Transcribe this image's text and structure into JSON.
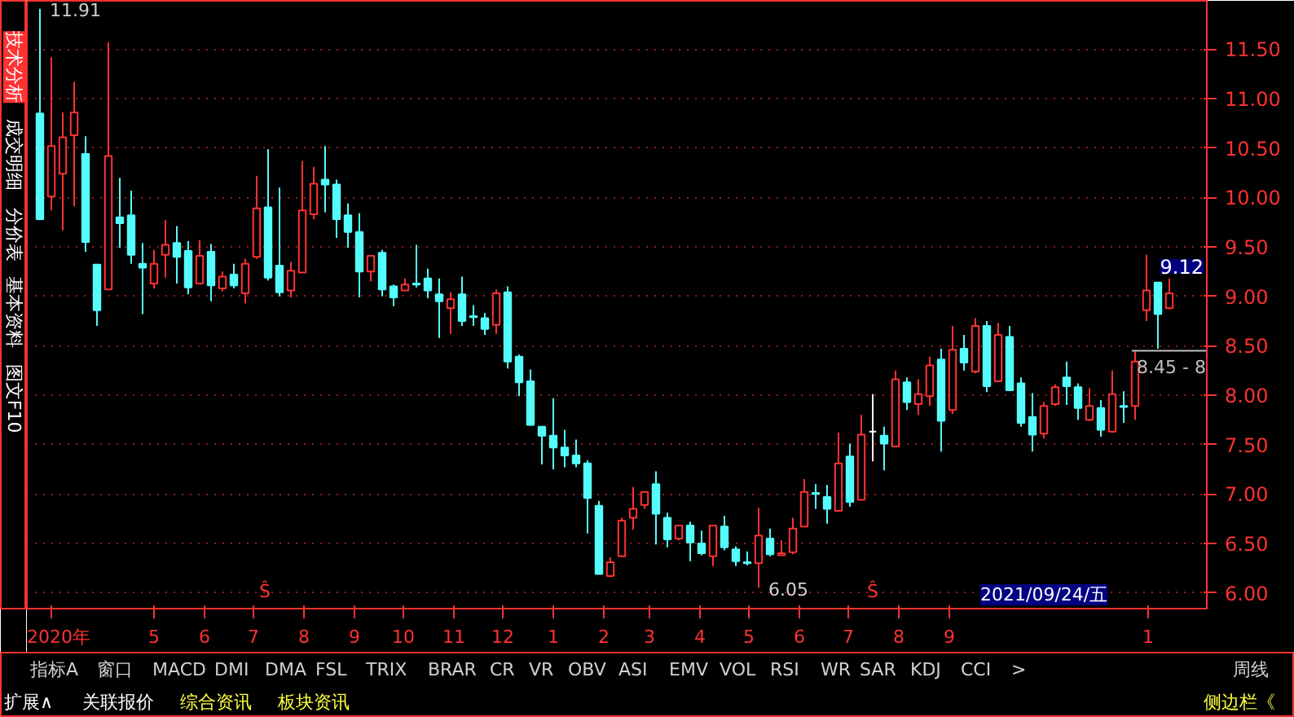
{
  "chart_data": {
    "type": "candlestick",
    "x": [
      "2020-02-21",
      "2020-02-28",
      "2020-03-06",
      "2020-03-13",
      "2020-03-20",
      "2020-03-27",
      "2020-04-03",
      "2020-04-10",
      "2020-04-17",
      "2020-04-24",
      "2020-05-01",
      "2020-05-08",
      "2020-05-15",
      "2020-05-22",
      "2020-05-29",
      "2020-06-05",
      "2020-06-12",
      "2020-06-19",
      "2020-06-26",
      "2020-07-03",
      "2020-07-10",
      "2020-07-17",
      "2020-07-24",
      "2020-07-31",
      "2020-08-07",
      "2020-08-14",
      "2020-08-21",
      "2020-08-28",
      "2020-09-04",
      "2020-09-11",
      "2020-09-18",
      "2020-09-25",
      "2020-10-02",
      "2020-10-09",
      "2020-10-16",
      "2020-10-23",
      "2020-10-30",
      "2020-11-06",
      "2020-11-13",
      "2020-11-20",
      "2020-11-27",
      "2020-12-04",
      "2020-12-11",
      "2020-12-18",
      "2020-12-25",
      "2021-01-01",
      "2021-01-08",
      "2021-01-15",
      "2021-01-22",
      "2021-01-29",
      "2021-02-05",
      "2021-02-12",
      "2021-02-19",
      "2021-02-26",
      "2021-03-05",
      "2021-03-12",
      "2021-03-19",
      "2021-03-26",
      "2021-04-02",
      "2021-04-09",
      "2021-04-16",
      "2021-04-23",
      "2021-04-30",
      "2021-05-07",
      "2021-05-14",
      "2021-05-21",
      "2021-05-28",
      "2021-06-04",
      "2021-06-11",
      "2021-06-18",
      "2021-06-25",
      "2021-07-02",
      "2021-07-09",
      "2021-07-16",
      "2021-07-23",
      "2021-07-30",
      "2021-08-06",
      "2021-08-13",
      "2021-08-20",
      "2021-08-27",
      "2021-09-03",
      "2021-09-10",
      "2021-09-17",
      "2021-09-24",
      "2021-10-01",
      "2021-10-08",
      "2021-10-15",
      "2021-10-22",
      "2021-10-29",
      "2021-11-05",
      "2021-11-12",
      "2021-11-19",
      "2021-11-26",
      "2021-12-03",
      "2021-12-10",
      "2021-12-17",
      "2021-12-24",
      "2021-12-31",
      "2022-01-07",
      "2022-01-14"
    ],
    "ohlc": [
      [
        10.85,
        11.91,
        9.77,
        9.78
      ],
      [
        10.01,
        11.42,
        9.87,
        10.52
      ],
      [
        10.24,
        10.86,
        9.67,
        10.61
      ],
      [
        10.63,
        11.17,
        9.91,
        10.86
      ],
      [
        10.44,
        10.62,
        9.45,
        9.55
      ],
      [
        9.32,
        9.32,
        8.7,
        8.86
      ],
      [
        9.07,
        11.57,
        9.07,
        10.42
      ],
      [
        9.8,
        10.2,
        9.49,
        9.74
      ],
      [
        9.82,
        10.07,
        9.33,
        9.42
      ],
      [
        9.33,
        9.54,
        8.82,
        9.29
      ],
      [
        9.13,
        9.47,
        9.08,
        9.33
      ],
      [
        9.42,
        9.77,
        9.19,
        9.52
      ],
      [
        9.54,
        9.71,
        9.13,
        9.4
      ],
      [
        9.46,
        9.56,
        9.02,
        9.09
      ],
      [
        9.13,
        9.57,
        9.13,
        9.41
      ],
      [
        9.45,
        9.53,
        8.95,
        9.11
      ],
      [
        9.08,
        9.25,
        9.05,
        9.2
      ],
      [
        9.22,
        9.33,
        9.08,
        9.11
      ],
      [
        9.03,
        9.38,
        8.93,
        9.33
      ],
      [
        9.4,
        10.22,
        9.38,
        9.89
      ],
      [
        9.9,
        10.49,
        9.16,
        9.19
      ],
      [
        9.31,
        10.1,
        9.0,
        9.04
      ],
      [
        9.06,
        9.35,
        8.99,
        9.26
      ],
      [
        9.24,
        10.37,
        9.24,
        9.87
      ],
      [
        9.83,
        10.31,
        9.78,
        10.14
      ],
      [
        10.18,
        10.52,
        9.85,
        10.13
      ],
      [
        10.13,
        10.18,
        9.59,
        9.78
      ],
      [
        9.82,
        9.94,
        9.49,
        9.65
      ],
      [
        9.65,
        9.84,
        8.99,
        9.25
      ],
      [
        9.25,
        9.41,
        9.15,
        9.41
      ],
      [
        9.44,
        9.47,
        9.0,
        9.07
      ],
      [
        9.1,
        9.12,
        8.9,
        8.99
      ],
      [
        9.06,
        9.18,
        9.06,
        9.12
      ],
      [
        9.13,
        9.52,
        9.09,
        9.12
      ],
      [
        9.18,
        9.28,
        8.98,
        9.06
      ],
      [
        9.02,
        9.18,
        8.58,
        8.95
      ],
      [
        8.88,
        9.04,
        8.62,
        8.97
      ],
      [
        9.02,
        9.2,
        8.7,
        8.75
      ],
      [
        8.8,
        8.91,
        8.7,
        8.79
      ],
      [
        8.78,
        8.83,
        8.61,
        8.67
      ],
      [
        8.71,
        9.07,
        8.62,
        9.03
      ],
      [
        9.04,
        9.1,
        8.27,
        8.34
      ],
      [
        8.39,
        8.41,
        7.99,
        8.13
      ],
      [
        8.14,
        8.26,
        7.69,
        7.7
      ],
      [
        7.68,
        7.68,
        7.3,
        7.59
      ],
      [
        7.59,
        7.97,
        7.25,
        7.47
      ],
      [
        7.47,
        7.65,
        7.27,
        7.39
      ],
      [
        7.39,
        7.55,
        7.27,
        7.31
      ],
      [
        7.31,
        7.34,
        6.6,
        6.96
      ],
      [
        6.88,
        6.93,
        6.19,
        6.19
      ],
      [
        6.17,
        6.36,
        6.16,
        6.31
      ],
      [
        6.37,
        6.76,
        6.37,
        6.73
      ],
      [
        6.76,
        7.07,
        6.64,
        6.85
      ],
      [
        6.89,
        7.02,
        6.85,
        7.02
      ],
      [
        7.1,
        7.23,
        6.49,
        6.8
      ],
      [
        6.76,
        6.81,
        6.46,
        6.54
      ],
      [
        6.55,
        6.69,
        6.53,
        6.68
      ],
      [
        6.68,
        6.72,
        6.32,
        6.51
      ],
      [
        6.5,
        6.63,
        6.38,
        6.4
      ],
      [
        6.37,
        6.68,
        6.27,
        6.68
      ],
      [
        6.67,
        6.78,
        6.43,
        6.46
      ],
      [
        6.44,
        6.47,
        6.27,
        6.32
      ],
      [
        6.31,
        6.42,
        6.28,
        6.3
      ],
      [
        6.3,
        6.86,
        6.05,
        6.58
      ],
      [
        6.55,
        6.65,
        6.37,
        6.39
      ],
      [
        6.38,
        6.53,
        6.38,
        6.4
      ],
      [
        6.41,
        6.76,
        6.39,
        6.65
      ],
      [
        6.67,
        7.15,
        6.67,
        7.02
      ],
      [
        7.01,
        7.1,
        6.85,
        7.0
      ],
      [
        6.97,
        7.09,
        6.7,
        6.85
      ],
      [
        6.83,
        7.62,
        6.83,
        7.31
      ],
      [
        7.38,
        7.51,
        6.87,
        6.92
      ],
      [
        6.94,
        7.8,
        6.94,
        7.6
      ],
      [
        7.63,
        8.01,
        7.33,
        7.63
      ],
      [
        7.59,
        7.68,
        7.24,
        7.51
      ],
      [
        7.48,
        8.25,
        7.48,
        8.16
      ],
      [
        8.13,
        8.18,
        7.85,
        7.93
      ],
      [
        7.91,
        8.16,
        7.8,
        8.01
      ],
      [
        7.99,
        8.39,
        7.89,
        8.3
      ],
      [
        8.36,
        8.47,
        7.43,
        7.74
      ],
      [
        7.85,
        8.7,
        7.81,
        8.46
      ],
      [
        8.47,
        8.61,
        8.25,
        8.33
      ],
      [
        8.24,
        8.78,
        8.22,
        8.7
      ],
      [
        8.7,
        8.75,
        8.03,
        8.09
      ],
      [
        8.14,
        8.73,
        8.14,
        8.61
      ],
      [
        8.59,
        8.7,
        8.05,
        8.05
      ],
      [
        8.12,
        8.18,
        7.68,
        7.72
      ],
      [
        7.78,
        8.02,
        7.43,
        7.6
      ],
      [
        7.61,
        7.93,
        7.56,
        7.89
      ],
      [
        7.91,
        8.11,
        7.89,
        8.08
      ],
      [
        8.18,
        8.34,
        7.9,
        8.09
      ],
      [
        8.08,
        8.12,
        7.75,
        7.87
      ],
      [
        7.75,
        8.07,
        7.74,
        7.89
      ],
      [
        7.87,
        7.95,
        7.58,
        7.65
      ],
      [
        7.63,
        8.25,
        7.62,
        8.01
      ],
      [
        7.89,
        8.04,
        7.72,
        7.88
      ],
      [
        7.89,
        8.44,
        7.75,
        8.34
      ],
      [
        8.86,
        9.42,
        8.75,
        9.06
      ],
      [
        9.14,
        9.14,
        8.47,
        8.82
      ],
      [
        8.88,
        9.18,
        8.87,
        9.03
      ]
    ],
    "colors": [
      "#54fcfc",
      "#ff3232",
      "#ff3232",
      "#ff3232",
      "#54fcfc",
      "#54fcfc",
      "#ff3232",
      "#54fcfc",
      "#54fcfc",
      "#54fcfc",
      "#ff3232",
      "#ff3232",
      "#54fcfc",
      "#54fcfc",
      "#ff3232",
      "#54fcfc",
      "#ff3232",
      "#54fcfc",
      "#ff3232",
      "#ff3232",
      "#54fcfc",
      "#54fcfc",
      "#ff3232",
      "#ff3232",
      "#ff3232",
      "#54fcfc",
      "#54fcfc",
      "#54fcfc",
      "#54fcfc",
      "#ff3232",
      "#54fcfc",
      "#54fcfc",
      "#ff3232",
      "#54fcfc",
      "#54fcfc",
      "#54fcfc",
      "#ff3232",
      "#54fcfc",
      "#54fcfc",
      "#54fcfc",
      "#ff3232",
      "#54fcfc",
      "#54fcfc",
      "#54fcfc",
      "#54fcfc",
      "#54fcfc",
      "#54fcfc",
      "#54fcfc",
      "#54fcfc",
      "#54fcfc",
      "#ff3232",
      "#ff3232",
      "#ff3232",
      "#ff3232",
      "#54fcfc",
      "#54fcfc",
      "#ff3232",
      "#54fcfc",
      "#54fcfc",
      "#ff3232",
      "#54fcfc",
      "#54fcfc",
      "#54fcfc",
      "#ff3232",
      "#54fcfc",
      "#ff3232",
      "#ff3232",
      "#ff3232",
      "#54fcfc",
      "#54fcfc",
      "#ff3232",
      "#54fcfc",
      "#ff3232",
      "#ffffff",
      "#54fcfc",
      "#ff3232",
      "#54fcfc",
      "#ff3232",
      "#ff3232",
      "#54fcfc",
      "#ff3232",
      "#54fcfc",
      "#ff3232",
      "#54fcfc",
      "#ff3232",
      "#54fcfc",
      "#54fcfc",
      "#54fcfc",
      "#ff3232",
      "#ff3232",
      "#54fcfc",
      "#54fcfc",
      "#ff3232",
      "#54fcfc",
      "#ff3232",
      "#54fcfc",
      "#ff3232",
      "#ff3232",
      "#54fcfc",
      "#ff3232"
    ],
    "xlim": [
      "2020-02-13",
      "2022-02-06"
    ],
    "xticks": [
      {
        "value": "2020-02-28",
        "label": "2020年"
      },
      {
        "value": "2020-05-01",
        "label": "5"
      },
      {
        "value": "2020-06-01",
        "label": "6"
      },
      {
        "value": "2020-07-01",
        "label": "7"
      },
      {
        "value": "2020-08-01",
        "label": "8"
      },
      {
        "value": "2020-09-01",
        "label": "9"
      },
      {
        "value": "2020-10-01",
        "label": "10"
      },
      {
        "value": "2020-11-01",
        "label": "11"
      },
      {
        "value": "2020-12-01",
        "label": "12"
      },
      {
        "value": "2021-01-01",
        "label": "1"
      },
      {
        "value": "2021-02-01",
        "label": "2"
      },
      {
        "value": "2021-03-01",
        "label": "3"
      },
      {
        "value": "2021-04-01",
        "label": "4"
      },
      {
        "value": "2021-05-01",
        "label": "5"
      },
      {
        "value": "2021-06-01",
        "label": "6"
      },
      {
        "value": "2021-07-01",
        "label": "7"
      },
      {
        "value": "2021-08-01",
        "label": "8"
      },
      {
        "value": "2021-09-01",
        "label": "9"
      },
      {
        "value": "2022-01-01",
        "label": "1"
      }
    ],
    "ylim": [
      5.84,
      11.99
    ],
    "yticks": [
      {
        "value": 6,
        "label": "6.00"
      },
      {
        "value": 6.5,
        "label": "6.50"
      },
      {
        "value": 7,
        "label": "7.00"
      },
      {
        "value": 7.5,
        "label": "7.50"
      },
      {
        "value": 8,
        "label": "8.00"
      },
      {
        "value": 8.5,
        "label": "8.50"
      },
      {
        "value": 9,
        "label": "9.00"
      },
      {
        "value": 9.5,
        "label": "9.50"
      },
      {
        "value": 10,
        "label": "10.00"
      },
      {
        "value": 10.5,
        "label": "10.50"
      },
      {
        "value": 11,
        "label": "11.00"
      },
      {
        "value": 11.5,
        "label": "11.50"
      }
    ],
    "grid": "y",
    "ref_lines": [
      {
        "axis": "y",
        "value": 8.45,
        "label": "8.45 - 8",
        "color": "#c0c0c0"
      }
    ],
    "annotations": [
      "技术分析",
      "成交明细",
      "分价表",
      "基本资料",
      "图文F10",
      "指标A",
      "窗口",
      "MACD",
      "DMI",
      "DMA",
      "FSL",
      "TRIX",
      "BRAR",
      "CR",
      "VR",
      "OBV",
      "ASI",
      "EMV",
      "VOL",
      "RSI",
      "WR",
      "SAR",
      "KDJ",
      "CCI",
      ">",
      "扩展∧",
      "关联报价",
      "综合资讯",
      "板块资讯",
      "侧边栏《",
      "周线",
      "Ŝ",
      "Ŝ",
      "2021/09/24/五",
      "9.12",
      {
        "text": "11.91",
        "x": "2020-02-21",
        "y": 11.91
      },
      {
        "text": "6.05",
        "x": "2021-05-07",
        "y": 6.05
      }
    ]
  }
}
